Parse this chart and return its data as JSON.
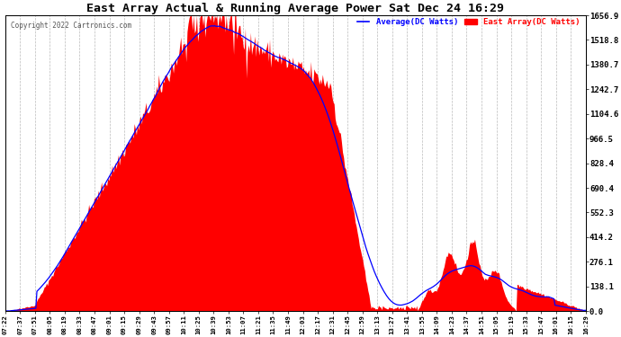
{
  "title": "East Array Actual & Running Average Power Sat Dec 24 16:29",
  "copyright": "Copyright 2022 Cartronics.com",
  "legend_avg": "Average(DC Watts)",
  "legend_east": "East Array(DC Watts)",
  "ylabel_right_ticks": [
    0.0,
    138.1,
    276.1,
    414.2,
    552.3,
    690.4,
    828.4,
    966.5,
    1104.6,
    1242.7,
    1380.7,
    1518.8,
    1656.9
  ],
  "ymax": 1656.9,
  "ymin": 0.0,
  "background_color": "#ffffff",
  "fill_color": "#ff0000",
  "avg_line_color": "#0000ff",
  "title_color": "#000000",
  "grid_color": "#bbbbbb",
  "x_tick_labels": [
    "07:22",
    "07:37",
    "07:51",
    "08:05",
    "08:19",
    "08:33",
    "08:47",
    "09:01",
    "09:15",
    "09:29",
    "09:43",
    "09:57",
    "10:11",
    "10:25",
    "10:39",
    "10:53",
    "11:07",
    "11:21",
    "11:35",
    "11:49",
    "12:03",
    "12:17",
    "12:31",
    "12:45",
    "12:59",
    "13:13",
    "13:27",
    "13:41",
    "13:55",
    "14:09",
    "14:23",
    "14:37",
    "14:51",
    "15:05",
    "15:19",
    "15:33",
    "15:47",
    "16:01",
    "16:15",
    "16:29"
  ],
  "figwidth": 6.9,
  "figheight": 3.75,
  "dpi": 100
}
